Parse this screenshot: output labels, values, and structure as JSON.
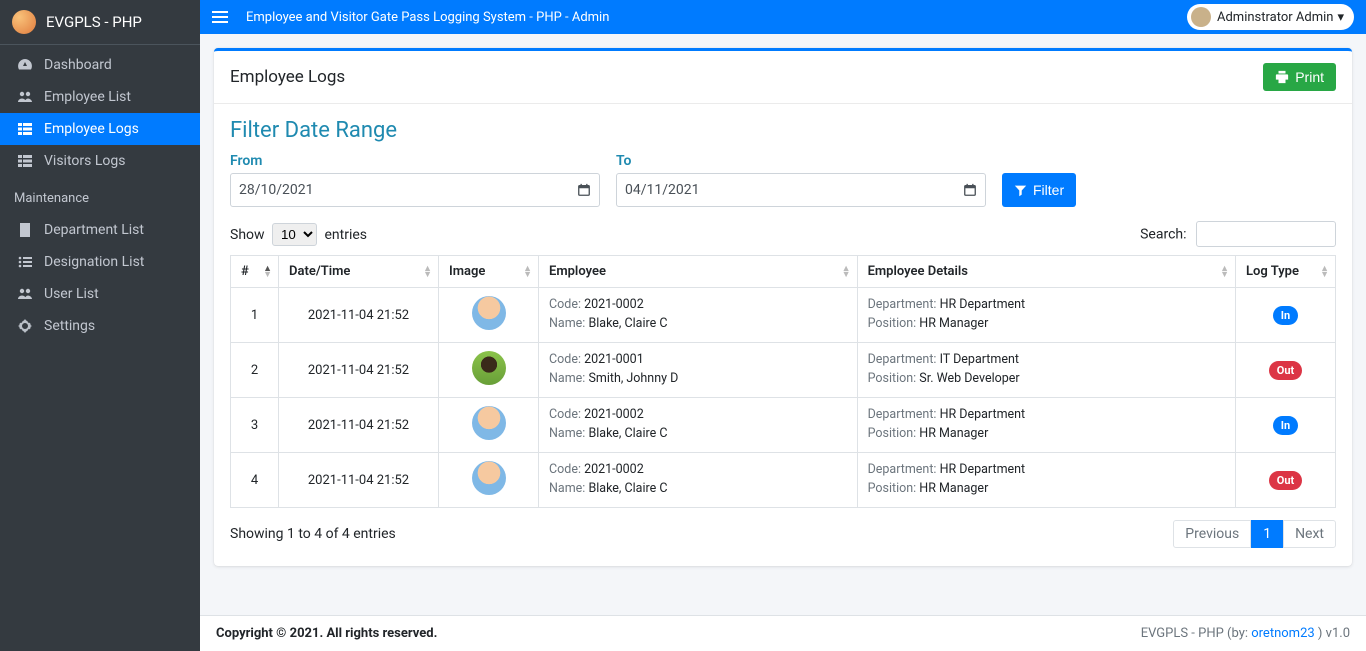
{
  "brand": {
    "text": "EVGPLS - PHP"
  },
  "topbar": {
    "title": "Employee and Visitor Gate Pass Logging System - PHP - Admin",
    "user": "Adminstrator Admin"
  },
  "sidebar": {
    "items": [
      {
        "label": "Dashboard"
      },
      {
        "label": "Employee List"
      },
      {
        "label": "Employee Logs"
      },
      {
        "label": "Visitors Logs"
      }
    ],
    "maintHeader": "Maintenance",
    "maint": [
      {
        "label": "Department List"
      },
      {
        "label": "Designation List"
      },
      {
        "label": "User List"
      },
      {
        "label": "Settings"
      }
    ]
  },
  "card": {
    "title": "Employee Logs",
    "printLabel": "Print",
    "filterTitle": "Filter Date Range",
    "fromLabel": "From",
    "toLabel": "To",
    "fromValue": "28/10/2021",
    "toValue": "04/11/2021",
    "filterBtn": "Filter"
  },
  "datatable": {
    "showLabel": "Show",
    "entriesLabel": "entries",
    "pageLength": "10",
    "searchLabel": "Search:",
    "columns": [
      "#",
      "Date/Time",
      "Image",
      "Employee",
      "Employee Details",
      "Log Type"
    ],
    "labels": {
      "code": "Code:",
      "name": "Name:",
      "department": "Department:",
      "position": "Position:"
    },
    "rows": [
      {
        "idx": "1",
        "dt": "2021-11-04 21:52",
        "avatar": "a",
        "code": "2021-0002",
        "name": "Blake, Claire C",
        "dept": "HR Department",
        "pos": "HR Manager",
        "log": "In"
      },
      {
        "idx": "2",
        "dt": "2021-11-04 21:52",
        "avatar": "b",
        "code": "2021-0001",
        "name": "Smith, Johnny D",
        "dept": "IT Department",
        "pos": "Sr. Web Developer",
        "log": "Out"
      },
      {
        "idx": "3",
        "dt": "2021-11-04 21:52",
        "avatar": "a",
        "code": "2021-0002",
        "name": "Blake, Claire C",
        "dept": "HR Department",
        "pos": "HR Manager",
        "log": "In"
      },
      {
        "idx": "4",
        "dt": "2021-11-04 21:52",
        "avatar": "a",
        "code": "2021-0002",
        "name": "Blake, Claire C",
        "dept": "HR Department",
        "pos": "HR Manager",
        "log": "Out"
      }
    ],
    "info": "Showing 1 to 4 of 4 entries",
    "prev": "Previous",
    "next": "Next",
    "page": "1"
  },
  "footer": {
    "left": "Copyright © 2021. All rights reserved.",
    "rightPrefix": "EVGPLS - PHP (by: ",
    "rightLink": "oretnom23",
    "rightSuffix": " ) v1.0"
  },
  "colors": {
    "primary": "#007bff",
    "success": "#28a745",
    "danger": "#dc3545",
    "sidebar": "#343a40"
  }
}
